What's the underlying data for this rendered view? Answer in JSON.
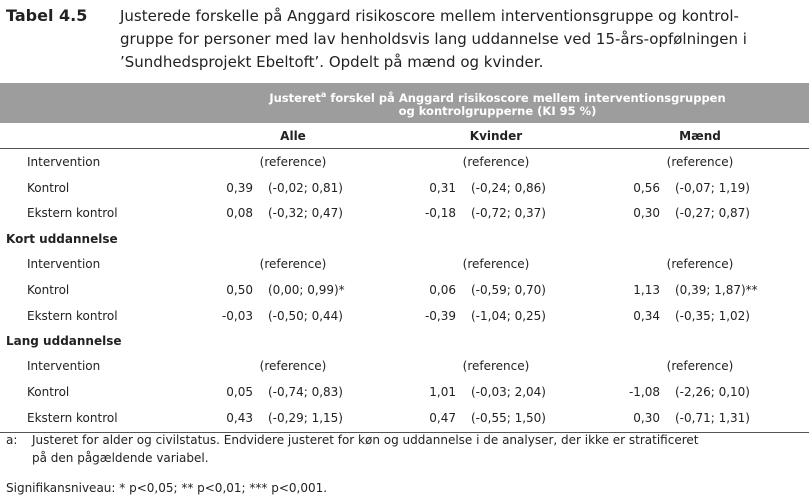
{
  "title": {
    "label": "Tabel 4.5",
    "lines": [
      "Justerede forskelle på Anggard risikoscore mellem interventionsgruppe og kontrol-",
      "gruppe for personer med lav henholdsvis lang uddannelse ved 15-års-opfølningen i",
      "’Sundhedsprojekt Ebeltoft’. Opdelt på mænd og kvinder."
    ]
  },
  "header": {
    "line1_pre": "Justeret",
    "sup": "a",
    "line1_post": " forskel på Anggard risikoscore mellem interventionsgruppen",
    "line2": "og kontrolgrupperne (KI 95 %)"
  },
  "columns": [
    "Alle",
    "Kvinder",
    "Mænd"
  ],
  "sections": [
    {
      "rows": [
        {
          "label": "Intervention",
          "cells": [
            {
              "reference": "(reference)"
            },
            {
              "reference": "(reference)"
            },
            {
              "reference": "(reference)"
            }
          ]
        },
        {
          "label": "Kontrol",
          "cells": [
            {
              "value": "0,39",
              "ci": "(-0,02; 0,81)"
            },
            {
              "value": "0,31",
              "ci": "(-0,24; 0,86)"
            },
            {
              "value": "0,56",
              "ci": "(-0,07; 1,19)"
            }
          ]
        },
        {
          "label": "Ekstern kontrol",
          "cells": [
            {
              "value": "0,08",
              "ci": "(-0,32; 0,47)"
            },
            {
              "value": "-0,18",
              "ci": "(-0,72; 0,37)"
            },
            {
              "value": "0,30",
              "ci": "(-0,27; 0,87)"
            }
          ]
        }
      ]
    },
    {
      "title": "Kort uddannelse",
      "rows": [
        {
          "label": "Intervention",
          "cells": [
            {
              "reference": "(reference)"
            },
            {
              "reference": "(reference)"
            },
            {
              "reference": "(reference)"
            }
          ]
        },
        {
          "label": "Kontrol",
          "cells": [
            {
              "value": "0,50",
              "ci": "(0,00; 0,99)*"
            },
            {
              "value": "0,06",
              "ci": "(-0,59; 0,70)"
            },
            {
              "value": "1,13",
              "ci": "(0,39; 1,87)**"
            }
          ]
        },
        {
          "label": "Ekstern kontrol",
          "cells": [
            {
              "value": "-0,03",
              "ci": "(-0,50; 0,44)"
            },
            {
              "value": "-0,39",
              "ci": "(-1,04; 0,25)"
            },
            {
              "value": "0,34",
              "ci": "(-0,35; 1,02)"
            }
          ]
        }
      ]
    },
    {
      "title": "Lang uddannelse",
      "rows": [
        {
          "label": "Intervention",
          "cells": [
            {
              "reference": "(reference)"
            },
            {
              "reference": "(reference)"
            },
            {
              "reference": "(reference)"
            }
          ]
        },
        {
          "label": "Kontrol",
          "cells": [
            {
              "value": "0,05",
              "ci": "(-0,74; 0,83)"
            },
            {
              "value": "1,01",
              "ci": "(-0,03; 2,04)"
            },
            {
              "value": "-1,08",
              "ci": "(-2,26; 0,10)"
            }
          ]
        },
        {
          "label": "Ekstern kontrol",
          "cells": [
            {
              "value": "0,43",
              "ci": "(-0,29; 1,15)"
            },
            {
              "value": "0,47",
              "ci": "(-0,55; 1,50)"
            },
            {
              "value": "0,30",
              "ci": "(-0,71; 1,31)"
            }
          ]
        }
      ]
    }
  ],
  "footnotes": {
    "mark": "a:",
    "lines": [
      "Justeret for alder og civilstatus. Endvidere justeret for køn og uddannelse i de analyser, der ikke er stratificeret",
      "på den pågældende variabel."
    ],
    "significance": "Signifikansniveau: * p<0,05; ** p<0,01; *** p<0,001."
  }
}
